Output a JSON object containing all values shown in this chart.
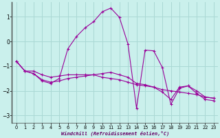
{
  "xlabel": "Windchill (Refroidissement éolien,°C)",
  "bg_color": "#caf0ec",
  "line_color": "#990099",
  "grid_color": "#aad8d4",
  "xlim": [
    -0.5,
    23.5
  ],
  "ylim": [
    -3.3,
    1.6
  ],
  "yticks": [
    -3,
    -2,
    -1,
    0,
    1
  ],
  "xticks": [
    0,
    1,
    2,
    3,
    4,
    5,
    6,
    7,
    8,
    9,
    10,
    11,
    12,
    13,
    14,
    15,
    16,
    17,
    18,
    19,
    20,
    21,
    22,
    23
  ],
  "series1_x": [
    0,
    1,
    2,
    3,
    4,
    5,
    6,
    7,
    8,
    9,
    10,
    11,
    12,
    13,
    14,
    15,
    16,
    17,
    18,
    19,
    20,
    21,
    22,
    23
  ],
  "series1_y": [
    -0.8,
    -1.2,
    -1.2,
    -1.35,
    -1.45,
    -1.4,
    -1.35,
    -1.35,
    -1.35,
    -1.35,
    -1.45,
    -1.5,
    -1.55,
    -1.65,
    -1.75,
    -1.8,
    -1.85,
    -1.95,
    -2.0,
    -2.05,
    -2.1,
    -2.15,
    -2.25,
    -2.3
  ],
  "series2_x": [
    0,
    1,
    2,
    3,
    4,
    5,
    6,
    7,
    8,
    9,
    10,
    11,
    12,
    13,
    14,
    15,
    16,
    17,
    18,
    19,
    20,
    21,
    22,
    23
  ],
  "series2_y": [
    -0.8,
    -1.2,
    -1.3,
    -1.55,
    -1.65,
    -1.6,
    -1.5,
    -1.45,
    -1.4,
    -1.35,
    -1.3,
    -1.25,
    -1.35,
    -1.45,
    -1.7,
    -1.75,
    -1.85,
    -2.05,
    -2.35,
    -1.85,
    -1.8,
    -2.0,
    -2.25,
    -2.3
  ],
  "series3_x": [
    0,
    1,
    2,
    3,
    4,
    5,
    6,
    7,
    8,
    9,
    10,
    11,
    12,
    13,
    14,
    15,
    16,
    17,
    18,
    19,
    20,
    21,
    22,
    23
  ],
  "series3_y": [
    -0.8,
    -1.2,
    -1.3,
    -1.6,
    -1.7,
    -1.5,
    -0.3,
    0.2,
    0.55,
    0.8,
    1.2,
    1.35,
    0.98,
    -0.1,
    -2.7,
    -0.35,
    -0.38,
    -1.05,
    -2.55,
    -1.9,
    -1.8,
    -2.1,
    -2.35,
    -2.4
  ]
}
